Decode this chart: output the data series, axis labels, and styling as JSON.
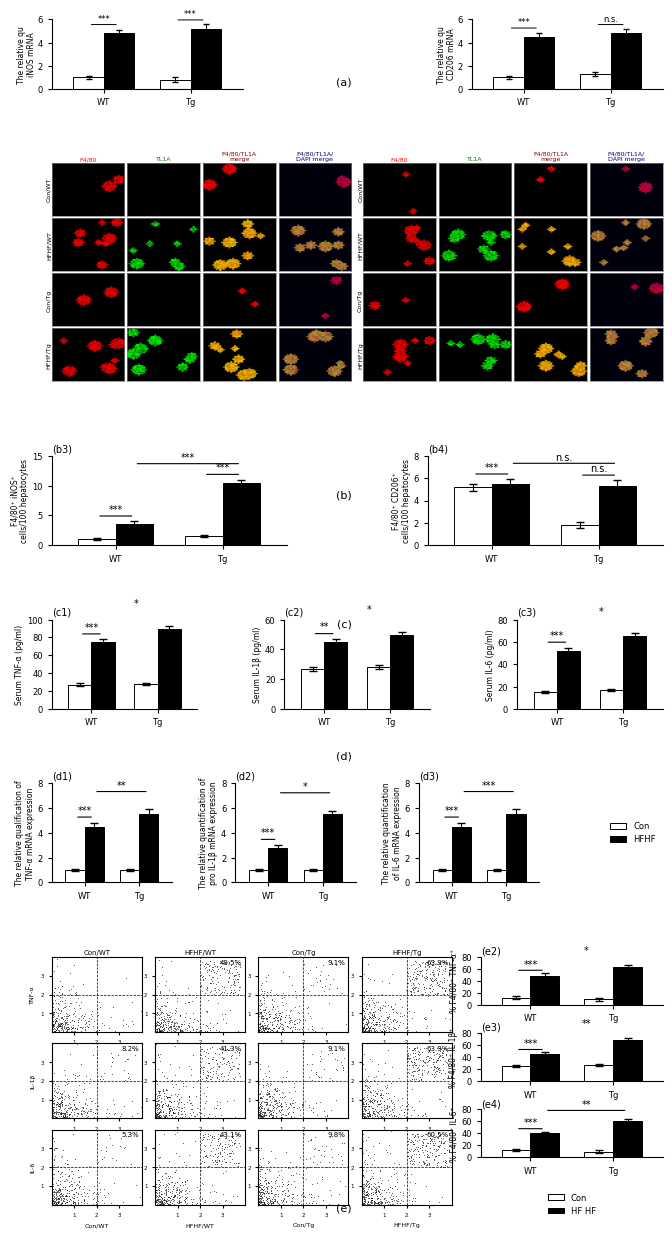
{
  "fig_bg": "#ffffff",
  "panel_a": {
    "label": "(a)",
    "charts": [
      {
        "ylabel": "The relative qu\niNOS mRNA",
        "xticks": [
          "WT",
          "Tg"
        ],
        "groups": [
          {
            "con": 1.0,
            "hfhf": 4.8
          },
          {
            "con": 0.8,
            "hfhf": 5.2
          }
        ],
        "ylim": [
          0,
          6
        ],
        "yticks": [
          0,
          2,
          4,
          6
        ],
        "sig_within": [
          "***",
          "***"
        ],
        "sig_between": "*"
      },
      {
        "ylabel": "The relative qu\nCD206 mRNA",
        "xticks": [
          "WT",
          "Tg"
        ],
        "groups": [
          {
            "con": 1.0,
            "hfhf": 4.5
          },
          {
            "con": 1.3,
            "hfhf": 4.8
          }
        ],
        "ylim": [
          0,
          6
        ],
        "yticks": [
          0,
          2,
          4,
          6
        ],
        "sig_within": [
          "***",
          "n.s."
        ],
        "sig_between": "n.s."
      }
    ]
  },
  "panel_b": {
    "label": "(b)",
    "b3": {
      "label": "(b3)",
      "ylabel": "F4/80⁺ iNOS⁺\ncells/100 hepatocytes",
      "xticks": [
        "WT",
        "Tg"
      ],
      "con_wt": 1.0,
      "hfhf_wt": 3.5,
      "con_tg": 1.5,
      "hfhf_tg": 10.5,
      "ylim": [
        0,
        15
      ],
      "yticks": [
        0,
        5,
        10,
        15
      ],
      "sig_within_wt": "***",
      "sig_within_tg": "***",
      "sig_between": "***"
    },
    "b4": {
      "label": "(b4)",
      "ylabel": "F4/80⁺ CD206⁺\ncells/100 hepatocytes",
      "xticks": [
        "WT",
        "Tg"
      ],
      "con_wt": 5.2,
      "hfhf_wt": 5.5,
      "con_tg": 1.8,
      "hfhf_tg": 5.3,
      "ylim": [
        0,
        8
      ],
      "yticks": [
        0,
        2,
        4,
        6,
        8
      ],
      "sig_within_wt": "***",
      "sig_within_tg": "n.s.",
      "sig_between": "n.s."
    }
  },
  "panel_c": {
    "label": "(c)",
    "c1": {
      "label": "(c1)",
      "ylabel": "Serum TNF-α (pg/ml)",
      "xticks": [
        "WT",
        "Tg"
      ],
      "con_wt": 27.0,
      "hfhf_wt": 75.0,
      "con_tg": 28.0,
      "hfhf_tg": 90.0,
      "ylim": [
        0,
        100
      ],
      "yticks": [
        0,
        20,
        40,
        60,
        80,
        100
      ],
      "sig_within_wt": "***",
      "sig_within_tg": "",
      "sig_between": "*"
    },
    "c2": {
      "label": "(c2)",
      "ylabel": "Serum IL-1β (pg/ml)",
      "xticks": [
        "WT",
        "Tg"
      ],
      "con_wt": 27.0,
      "hfhf_wt": 45.0,
      "con_tg": 28.0,
      "hfhf_tg": 50.0,
      "ylim": [
        0,
        60
      ],
      "yticks": [
        0,
        20,
        40,
        60
      ],
      "sig_within_wt": "**",
      "sig_within_tg": "",
      "sig_between": "*"
    },
    "c3": {
      "label": "(c3)",
      "ylabel": "Serum IL-6 (pg/ml)",
      "xticks": [
        "WT",
        "Tg"
      ],
      "con_wt": 15.0,
      "hfhf_wt": 52.0,
      "con_tg": 17.0,
      "hfhf_tg": 65.0,
      "ylim": [
        0,
        80
      ],
      "yticks": [
        0,
        20,
        40,
        60,
        80
      ],
      "sig_within_wt": "***",
      "sig_within_tg": "",
      "sig_between": "*"
    }
  },
  "panel_d": {
    "label": "(d)",
    "d1": {
      "label": "(d1)",
      "ylabel": "The relative qualification of\nTNF-α mRNA expression",
      "xticks": [
        "WT",
        "Tg"
      ],
      "con_wt": 1.0,
      "hfhf_wt": 4.5,
      "con_tg": 1.0,
      "hfhf_tg": 5.5,
      "ylim": [
        0,
        8
      ],
      "yticks": [
        0,
        2,
        4,
        6,
        8
      ],
      "sig_within_wt": "***",
      "sig_within_tg": "",
      "sig_between": "**"
    },
    "d2": {
      "label": "(d2)",
      "ylabel": "The relative quantification of\npro IL-1β mRNA expression",
      "xticks": [
        "WT",
        "Tg"
      ],
      "con_wt": 1.0,
      "hfhf_wt": 2.8,
      "con_tg": 1.0,
      "hfhf_tg": 5.5,
      "ylim": [
        0,
        8
      ],
      "yticks": [
        0,
        2,
        4,
        6,
        8
      ],
      "sig_within_wt": "***",
      "sig_within_tg": "",
      "sig_between": "*"
    },
    "d3": {
      "label": "(d3)",
      "ylabel": "The relative quantification\nof IL-6 mRNA expression",
      "xticks": [
        "WT",
        "Tg"
      ],
      "con_wt": 1.0,
      "hfhf_wt": 4.5,
      "con_tg": 1.0,
      "hfhf_tg": 5.5,
      "ylim": [
        0,
        8
      ],
      "yticks": [
        0,
        2,
        4,
        6,
        8
      ],
      "sig_within_wt": "***",
      "sig_within_tg": "",
      "sig_between": "***"
    },
    "legend": {
      "con_label": "Con",
      "hfhf_label": "HFHF"
    }
  },
  "panel_e": {
    "label": "(e)",
    "e1_labels": [
      "Con/WT",
      "HFHF/WT",
      "Con/Tg",
      "HFHF/Tg"
    ],
    "scatter_pcts": [
      [
        null,
        49.5,
        9.1,
        63.9
      ],
      [
        8.2,
        41.3,
        9.1,
        63.9
      ],
      [
        5.3,
        43.1,
        9.8,
        60.5
      ]
    ],
    "row_labels": [
      "TNF-α",
      "IL-1β",
      "IL-6"
    ],
    "e2": {
      "label": "(e2)",
      "ylabel": "% F4/80⁺ TNF-α⁺",
      "con_wt": 12.0,
      "hfhf_wt": 49.0,
      "con_tg": 9.0,
      "hfhf_tg": 63.0,
      "ylim": [
        0,
        80
      ],
      "yticks": [
        0,
        20,
        40,
        60,
        80
      ],
      "sig_within_wt": "***",
      "sig_within_tg": "",
      "sig_between": "*"
    },
    "e3": {
      "label": "(e3)",
      "ylabel": "% F4/80⁺ IL-1β⁺",
      "con_wt": 25.0,
      "hfhf_wt": 45.0,
      "con_tg": 27.0,
      "hfhf_tg": 68.0,
      "ylim": [
        0,
        80
      ],
      "yticks": [
        0,
        20,
        40,
        60,
        80
      ],
      "sig_within_wt": "***",
      "sig_within_tg": "",
      "sig_between": "**"
    },
    "e4": {
      "label": "(e4)",
      "ylabel": "% F4/80⁺ IL-6⁺",
      "con_wt": 12.0,
      "hfhf_wt": 40.0,
      "con_tg": 9.5,
      "hfhf_tg": 60.0,
      "ylim": [
        0,
        80
      ],
      "yticks": [
        0,
        20,
        40,
        60,
        80
      ],
      "sig_within_wt": "***",
      "sig_within_tg": "",
      "sig_between": "**"
    },
    "legend": {
      "con_label": "Con",
      "hfhf_label": "HF HF"
    }
  },
  "bar_width": 0.35,
  "con_color": "white",
  "hfhf_color": "black",
  "con_edgecolor": "black",
  "hfhf_edgecolor": "black",
  "error_capsize": 3,
  "error_color": "black",
  "fontsize_label": 6,
  "fontsize_tick": 6,
  "fontsize_sig": 7,
  "fontsize_panel": 8
}
